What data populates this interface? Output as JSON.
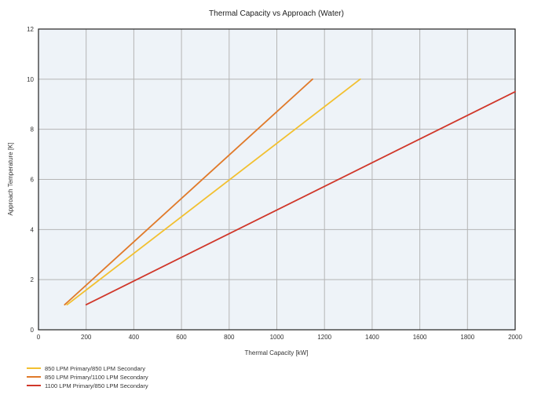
{
  "chart_data": {
    "type": "line",
    "title": "Thermal Capacity vs Approach (Water)",
    "xlabel": "Thermal Capacity [kW]",
    "ylabel": "Approach Temperature [K]",
    "xlim": [
      0,
      2000
    ],
    "ylim": [
      0,
      12
    ],
    "xticks": [
      0,
      200,
      400,
      600,
      800,
      1000,
      1200,
      1400,
      1600,
      1800,
      2000
    ],
    "yticks": [
      0,
      2,
      4,
      6,
      8,
      10,
      12
    ],
    "grid": true,
    "legend_position": "bottom-left",
    "series": [
      {
        "name": "850 LPM Primary/850 LPM Secondary",
        "color": "#f2c030",
        "x": [
          120,
          1350
        ],
        "y": [
          1,
          10
        ]
      },
      {
        "name": "850 LPM Primary/1100 LPM Secondary",
        "color": "#e07a2a",
        "x": [
          110,
          1150
        ],
        "y": [
          1,
          10
        ]
      },
      {
        "name": "1100 LPM Primary/850 LPM Secondary",
        "color": "#d0372a",
        "x": [
          200,
          2000
        ],
        "y": [
          1,
          9.5
        ]
      }
    ]
  }
}
